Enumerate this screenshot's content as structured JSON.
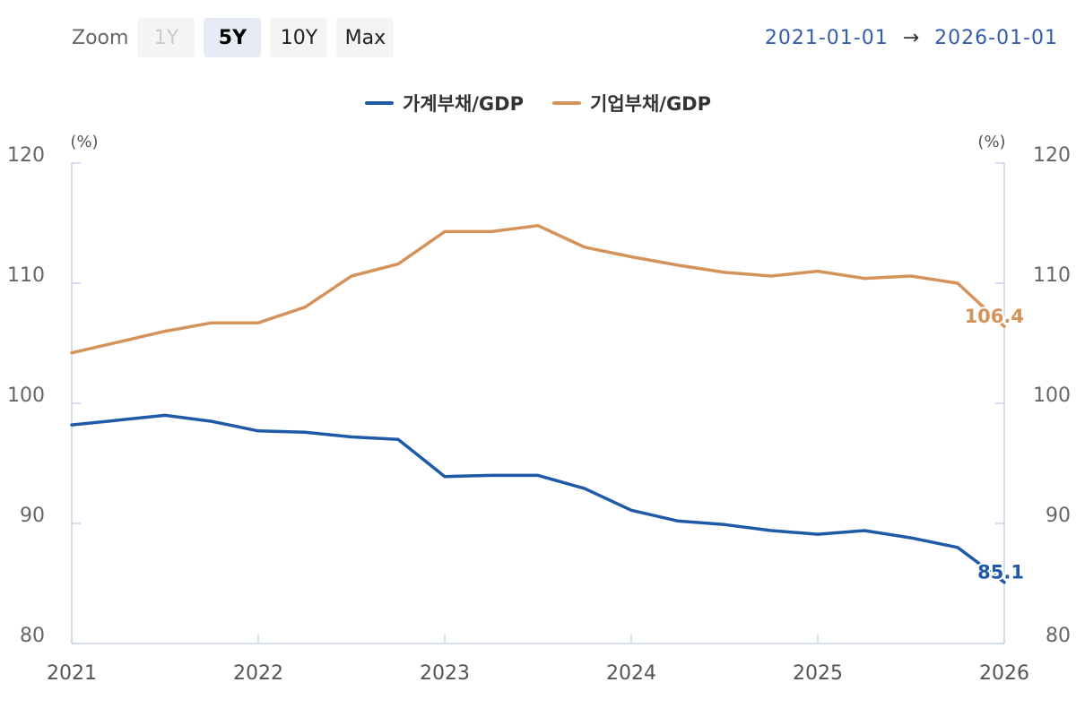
{
  "toolbar": {
    "zoom_label": "Zoom",
    "buttons": [
      {
        "label": "1Y",
        "state": "disabled"
      },
      {
        "label": "5Y",
        "state": "active"
      },
      {
        "label": "10Y",
        "state": "normal"
      },
      {
        "label": "Max",
        "state": "normal"
      }
    ]
  },
  "range": {
    "from": "2021-01-01",
    "arrow": "→",
    "to": "2026-01-01"
  },
  "colors": {
    "household": "#1f5aa8",
    "corporate": "#d4935a",
    "grid": "#c8d4ea"
  },
  "chart_data": {
    "type": "line",
    "left_axis_unit": "(%)",
    "right_axis_unit": "(%)",
    "ylim": [
      80,
      120
    ],
    "yticks": [
      120,
      110,
      100,
      90,
      80
    ],
    "xlim": [
      2021,
      2026
    ],
    "xticks": [
      2021,
      2022,
      2023,
      2024,
      2025,
      2026
    ],
    "series": [
      {
        "name": "가계부채/GDP",
        "color": "#1f5aa8",
        "last_label": "85.1",
        "points": [
          [
            2021.0,
            98.2
          ],
          [
            2021.25,
            98.6
          ],
          [
            2021.5,
            99.0
          ],
          [
            2021.75,
            98.5
          ],
          [
            2022.0,
            97.7
          ],
          [
            2022.25,
            97.6
          ],
          [
            2022.5,
            97.2
          ],
          [
            2022.75,
            97.0
          ],
          [
            2023.0,
            93.9
          ],
          [
            2023.25,
            94.0
          ],
          [
            2023.5,
            94.0
          ],
          [
            2023.75,
            92.9
          ],
          [
            2024.0,
            91.1
          ],
          [
            2024.25,
            90.2
          ],
          [
            2024.5,
            89.9
          ],
          [
            2024.75,
            89.4
          ],
          [
            2025.0,
            89.1
          ],
          [
            2025.25,
            89.4
          ],
          [
            2025.5,
            88.8
          ],
          [
            2025.75,
            88.0
          ],
          [
            2026.0,
            85.1
          ]
        ]
      },
      {
        "name": "기업부채/GDP",
        "color": "#d4935a",
        "last_label": "106.4",
        "points": [
          [
            2021.0,
            104.2
          ],
          [
            2021.25,
            105.1
          ],
          [
            2021.5,
            106.0
          ],
          [
            2021.75,
            106.7
          ],
          [
            2022.0,
            106.7
          ],
          [
            2022.25,
            108.0
          ],
          [
            2022.5,
            110.6
          ],
          [
            2022.75,
            111.6
          ],
          [
            2023.0,
            114.3
          ],
          [
            2023.25,
            114.3
          ],
          [
            2023.5,
            114.8
          ],
          [
            2023.75,
            113.0
          ],
          [
            2024.0,
            112.2
          ],
          [
            2024.25,
            111.5
          ],
          [
            2024.5,
            110.9
          ],
          [
            2024.75,
            110.6
          ],
          [
            2025.0,
            111.0
          ],
          [
            2025.25,
            110.4
          ],
          [
            2025.5,
            110.6
          ],
          [
            2025.75,
            110.0
          ],
          [
            2026.0,
            106.4
          ]
        ]
      }
    ]
  }
}
